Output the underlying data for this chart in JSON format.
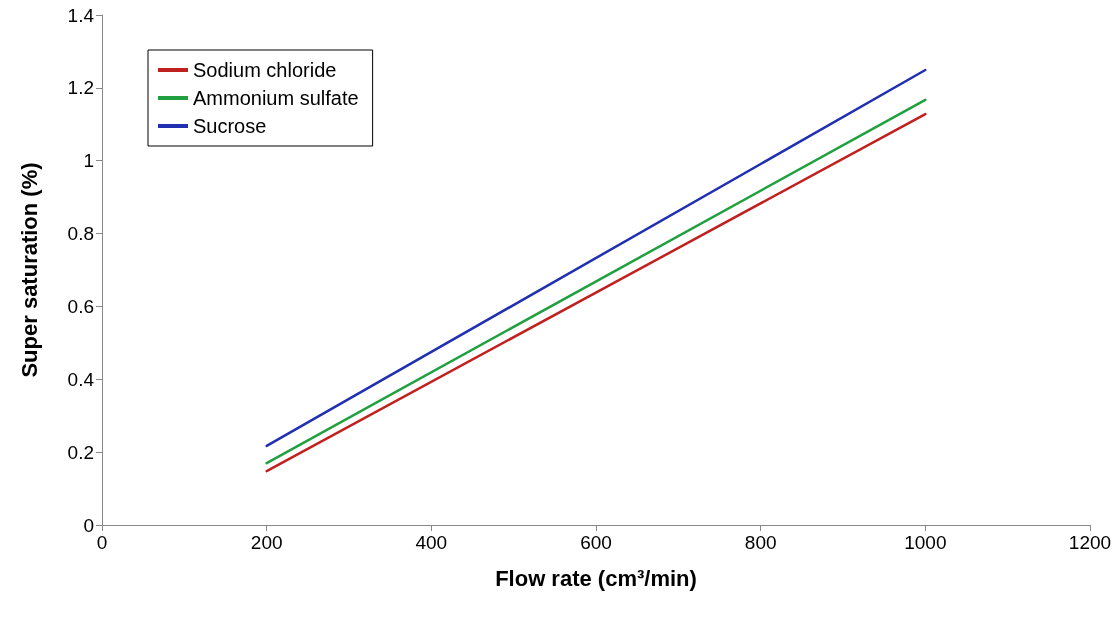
{
  "chart_data": {
    "type": "line",
    "xlabel": "Flow rate (cm³/min)",
    "ylabel": "Super saturation (%)",
    "x": [
      200,
      1000
    ],
    "series": [
      {
        "name": "Sodium chloride",
        "color": "#c0201e",
        "values": [
          0.148,
          1.128
        ]
      },
      {
        "name": "Ammonium sulfate",
        "color": "#20a040",
        "values": [
          0.17,
          1.167
        ]
      },
      {
        "name": "Sucrose",
        "color": "#2030b0",
        "values": [
          0.217,
          1.249
        ]
      }
    ],
    "xlim": [
      0,
      1200
    ],
    "xticks": [
      0,
      200,
      400,
      600,
      800,
      1000,
      1200
    ],
    "ylim": [
      0,
      1.4
    ],
    "yticks": [
      0,
      0.2,
      0.4,
      0.6,
      0.8,
      1,
      1.2,
      1.4
    ],
    "grid": false,
    "legend": "top left",
    "marker": "none",
    "line_style": "solid"
  }
}
